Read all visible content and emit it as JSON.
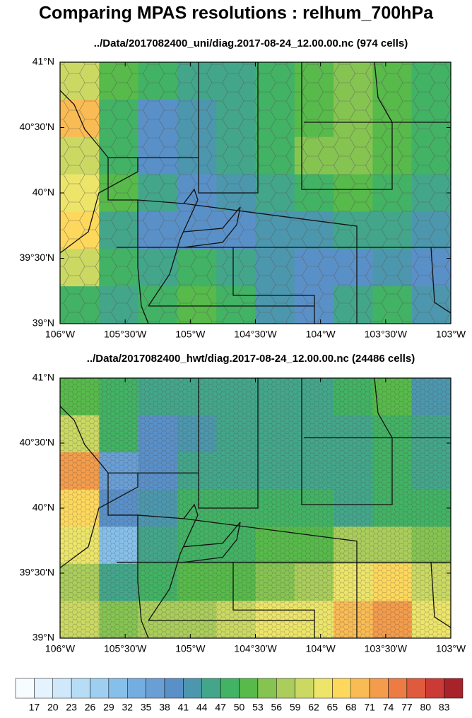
{
  "title": "Comparing MPAS resolutions : relhum_700hPa",
  "panels": [
    {
      "subtitle": "../Data/2017082400_uni/diag.2017-08-24_12.00.00.nc (974 cells)",
      "xlim": [
        -106,
        -103
      ],
      "ylim": [
        39,
        41
      ],
      "xticks": [
        {
          "value": -106,
          "label": "106°W"
        },
        {
          "value": -105.5,
          "label": "105°30'W"
        },
        {
          "value": -105,
          "label": "105°W"
        },
        {
          "value": -104.5,
          "label": "104°30'W"
        },
        {
          "value": -104,
          "label": "104°W"
        },
        {
          "value": -103.5,
          "label": "103°30'W"
        },
        {
          "value": -103,
          "label": "103°W"
        }
      ],
      "yticks": [
        {
          "value": 41,
          "label": "41°N"
        },
        {
          "value": 40.5,
          "label": "40°30'N"
        },
        {
          "value": 40,
          "label": "40°N"
        },
        {
          "value": 39.5,
          "label": "39°30'N"
        },
        {
          "value": 39,
          "label": "39°N"
        }
      ],
      "field": [
        [
          59,
          50,
          47,
          44,
          45,
          47,
          50,
          53,
          50,
          47
        ],
        [
          68,
          47,
          40,
          41,
          44,
          47,
          50,
          53,
          50,
          47
        ],
        [
          59,
          47,
          40,
          41,
          44,
          47,
          53,
          53,
          50,
          47
        ],
        [
          62,
          50,
          44,
          40,
          41,
          44,
          47,
          50,
          47,
          44
        ],
        [
          65,
          44,
          40,
          38,
          40,
          41,
          41,
          44,
          44,
          41
        ],
        [
          59,
          47,
          44,
          47,
          44,
          41,
          38,
          38,
          41,
          38
        ],
        [
          47,
          44,
          47,
          50,
          47,
          41,
          40,
          44,
          47,
          41
        ]
      ]
    },
    {
      "subtitle": "../Data/2017082400_hwt/diag.2017-08-24_12.00.00.nc (24486 cells)",
      "xlim": [
        -106,
        -103
      ],
      "ylim": [
        39,
        41
      ],
      "xticks": [
        {
          "value": -106,
          "label": "106°W"
        },
        {
          "value": -105.5,
          "label": "105°30'W"
        },
        {
          "value": -105,
          "label": "105°W"
        },
        {
          "value": -104.5,
          "label": "104°30'W"
        },
        {
          "value": -104,
          "label": "104°W"
        },
        {
          "value": -103.5,
          "label": "103°30'W"
        },
        {
          "value": -103,
          "label": "103°W"
        }
      ],
      "yticks": [
        {
          "value": 41,
          "label": "41°N"
        },
        {
          "value": 40.5,
          "label": "40°30'N"
        },
        {
          "value": 40,
          "label": "40°N"
        },
        {
          "value": 39.5,
          "label": "39°30'N"
        },
        {
          "value": 39,
          "label": "39°N"
        }
      ],
      "field": [
        [
          50,
          47,
          44,
          44,
          44,
          44,
          44,
          47,
          50,
          41
        ],
        [
          59,
          47,
          38,
          41,
          44,
          44,
          44,
          44,
          47,
          44
        ],
        [
          71,
          35,
          40,
          44,
          44,
          44,
          44,
          44,
          47,
          44
        ],
        [
          65,
          38,
          41,
          47,
          47,
          47,
          47,
          44,
          47,
          47
        ],
        [
          62,
          30,
          44,
          47,
          47,
          50,
          50,
          56,
          56,
          53
        ],
        [
          56,
          44,
          47,
          50,
          50,
          53,
          56,
          62,
          65,
          59
        ],
        [
          59,
          53,
          56,
          56,
          59,
          62,
          62,
          68,
          71,
          62
        ]
      ]
    }
  ],
  "colorbar": {
    "levels": [
      17,
      20,
      23,
      26,
      29,
      32,
      35,
      38,
      41,
      44,
      47,
      50,
      53,
      56,
      59,
      62,
      65,
      68,
      71,
      74,
      77,
      80,
      83
    ],
    "colors": [
      "#f7fcff",
      "#e4f3fd",
      "#cfe8fa",
      "#b7ddf6",
      "#9ecff1",
      "#86c0ea",
      "#74aee1",
      "#6a9fd5",
      "#5a90c8",
      "#4c97ad",
      "#43a68a",
      "#42b264",
      "#57ba4a",
      "#86c452",
      "#aacd5b",
      "#cbd963",
      "#ece56a",
      "#fdd85d",
      "#f9bb54",
      "#f39c4b",
      "#ec7c44",
      "#e05a3d",
      "#cc3a35",
      "#a8222a"
    ]
  }
}
